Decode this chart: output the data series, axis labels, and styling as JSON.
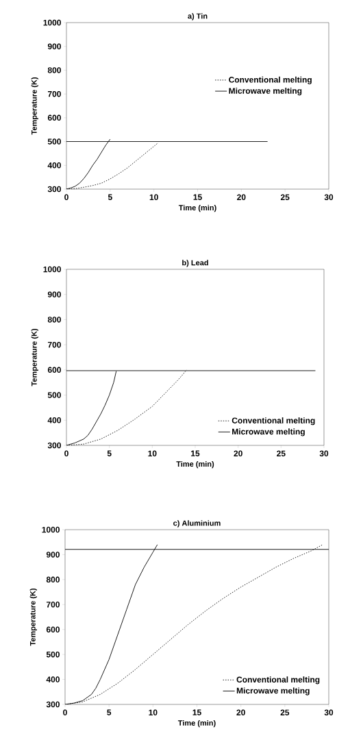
{
  "chart_data": [
    {
      "type": "line",
      "title": "a) Tin",
      "xlabel": "Time (min)",
      "ylabel": "Temperature (K)",
      "xlim": [
        0,
        30
      ],
      "ylim": [
        300,
        1000
      ],
      "xticks": [
        0,
        5,
        10,
        15,
        20,
        25,
        30
      ],
      "yticks": [
        300,
        400,
        500,
        600,
        700,
        800,
        900,
        1000
      ],
      "legend": "right",
      "grid": false,
      "series": [
        {
          "name": "Conventional melting",
          "color": "#000000",
          "line_style": "dotted",
          "x": [
            0,
            1,
            2,
            3,
            4,
            5,
            6,
            7,
            8,
            9,
            10,
            10.5
          ],
          "values": [
            300,
            302,
            308,
            315,
            325,
            343,
            365,
            390,
            420,
            450,
            480,
            495
          ]
        },
        {
          "name": "Microwave melting",
          "color": "#000000",
          "line_style": "solid",
          "x": [
            0,
            0.5,
            1,
            1.5,
            2,
            2.5,
            3,
            3.5,
            4,
            4.5,
            5
          ],
          "values": [
            300,
            305,
            312,
            325,
            345,
            370,
            400,
            425,
            455,
            485,
            510
          ]
        },
        {
          "color": "#000000",
          "line_style": "solid",
          "x": [
            0,
            23
          ],
          "values": [
            500,
            500
          ]
        }
      ]
    },
    {
      "type": "line",
      "title": "b) Lead",
      "xlabel": "Time (min)",
      "ylabel": "Temperature (K)",
      "xlim": [
        0,
        30
      ],
      "ylim": [
        300,
        1000
      ],
      "xticks": [
        0,
        5,
        10,
        15,
        20,
        25,
        30
      ],
      "yticks": [
        300,
        400,
        500,
        600,
        700,
        800,
        900,
        1000
      ],
      "legend": "bottom right",
      "grid": false,
      "series": [
        {
          "name": "Conventional melting",
          "color": "#000000",
          "line_style": "dotted",
          "x": [
            0,
            2,
            4,
            6,
            8,
            10,
            12,
            13,
            14
          ],
          "values": [
            300,
            305,
            325,
            360,
            405,
            455,
            525,
            560,
            600
          ]
        },
        {
          "name": "Microwave melting",
          "color": "#000000",
          "line_style": "solid",
          "x": [
            0,
            1,
            2,
            2.5,
            3,
            3.5,
            4,
            4.5,
            5,
            5.5,
            5.8
          ],
          "values": [
            300,
            310,
            325,
            340,
            365,
            395,
            425,
            460,
            500,
            550,
            595
          ]
        },
        {
          "color": "#000000",
          "line_style": "solid",
          "x": [
            0,
            29
          ],
          "values": [
            597,
            597
          ]
        }
      ]
    },
    {
      "type": "line",
      "title": "c) Aluminium",
      "xlabel": "Time (min)",
      "ylabel": "Temperature (K)",
      "xlim": [
        0,
        30
      ],
      "ylim": [
        300,
        1000
      ],
      "xticks": [
        0,
        5,
        10,
        15,
        20,
        25,
        30
      ],
      "yticks": [
        300,
        400,
        500,
        600,
        700,
        800,
        900,
        1000
      ],
      "legend": "bottom right",
      "grid": false,
      "series": [
        {
          "name": "Conventional melting",
          "color": "#000000",
          "line_style": "dotted",
          "x": [
            0,
            2,
            4,
            6,
            8,
            10,
            12,
            14,
            16,
            18,
            20,
            22,
            24,
            26,
            28,
            29.3
          ],
          "values": [
            300,
            310,
            340,
            385,
            440,
            500,
            560,
            620,
            675,
            725,
            770,
            810,
            850,
            885,
            915,
            940
          ]
        },
        {
          "name": "Microwave melting",
          "color": "#000000",
          "line_style": "solid",
          "x": [
            0,
            1,
            2,
            3,
            3.5,
            4,
            4.5,
            5,
            6,
            7,
            8,
            9,
            10,
            10.5
          ],
          "values": [
            300,
            305,
            315,
            340,
            365,
            400,
            440,
            480,
            580,
            680,
            780,
            850,
            910,
            940
          ]
        },
        {
          "color": "#000000",
          "line_style": "solid",
          "x": [
            0,
            30
          ],
          "values": [
            921,
            921
          ]
        }
      ]
    }
  ]
}
